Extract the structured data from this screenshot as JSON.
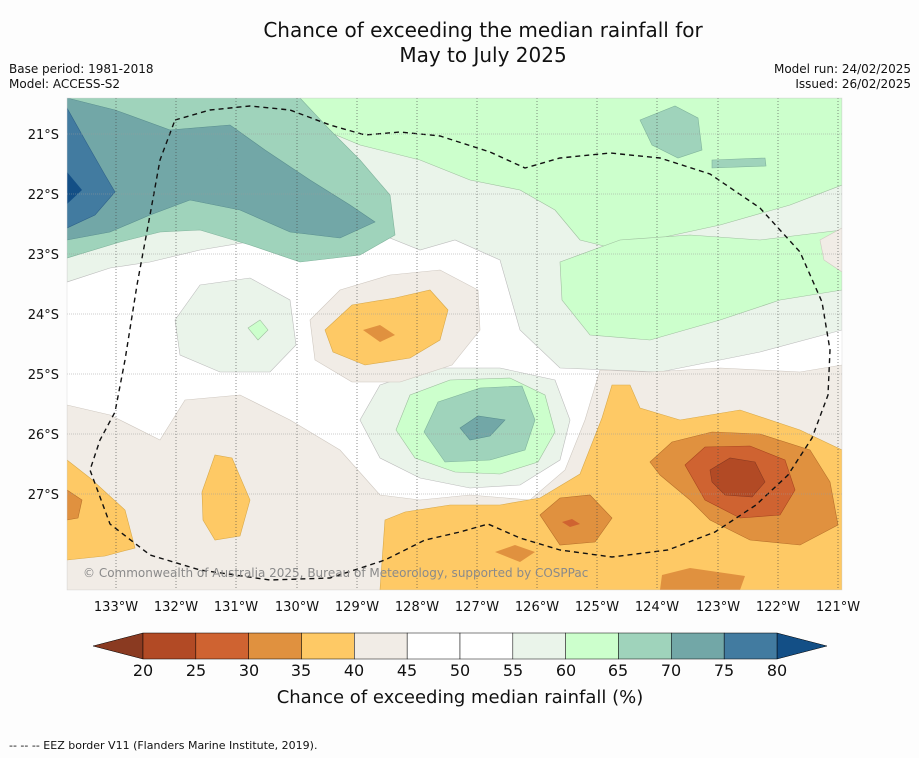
{
  "title_line1": "Chance of exceeding the median rainfall for",
  "title_line2": "May to July 2025",
  "meta_left": [
    "Base period: 1981-2018",
    "Model: ACCESS-S2"
  ],
  "meta_right": [
    "Model run: 24/02/2025",
    "Issued: 26/02/2025"
  ],
  "copyright": "© Commonwealth of Australia 2025, Bureau of Meteorology, supported by COSPPac",
  "lat_labels": [
    "21°S",
    "22°S",
    "23°S",
    "24°S",
    "25°S",
    "26°S",
    "27°S"
  ],
  "lon_labels": [
    "133°W",
    "132°W",
    "131°W",
    "130°W",
    "129°W",
    "128°W",
    "127°W",
    "126°W",
    "125°W",
    "124°W",
    "123°W",
    "122°W",
    "121°W"
  ],
  "colorbar": {
    "ticks": [
      "20",
      "25",
      "30",
      "35",
      "40",
      "45",
      "50",
      "55",
      "60",
      "65",
      "70",
      "75",
      "80"
    ],
    "label": "Chance of exceeding median rainfall (%)",
    "under_color": "#8a3a21",
    "over_color": "#134f86",
    "colors": [
      "#b24a25",
      "#cf6331",
      "#e0913f",
      "#fec965",
      "#f1ece6",
      "#ffffff",
      "#ffffff",
      "#eaf4ea",
      "#ccffcc",
      "#9fd3bb",
      "#72a7a7",
      "#427ba0"
    ]
  },
  "footer": "--  --  -- EEZ border V11 (Flanders Marine Institute, 2019)."
}
